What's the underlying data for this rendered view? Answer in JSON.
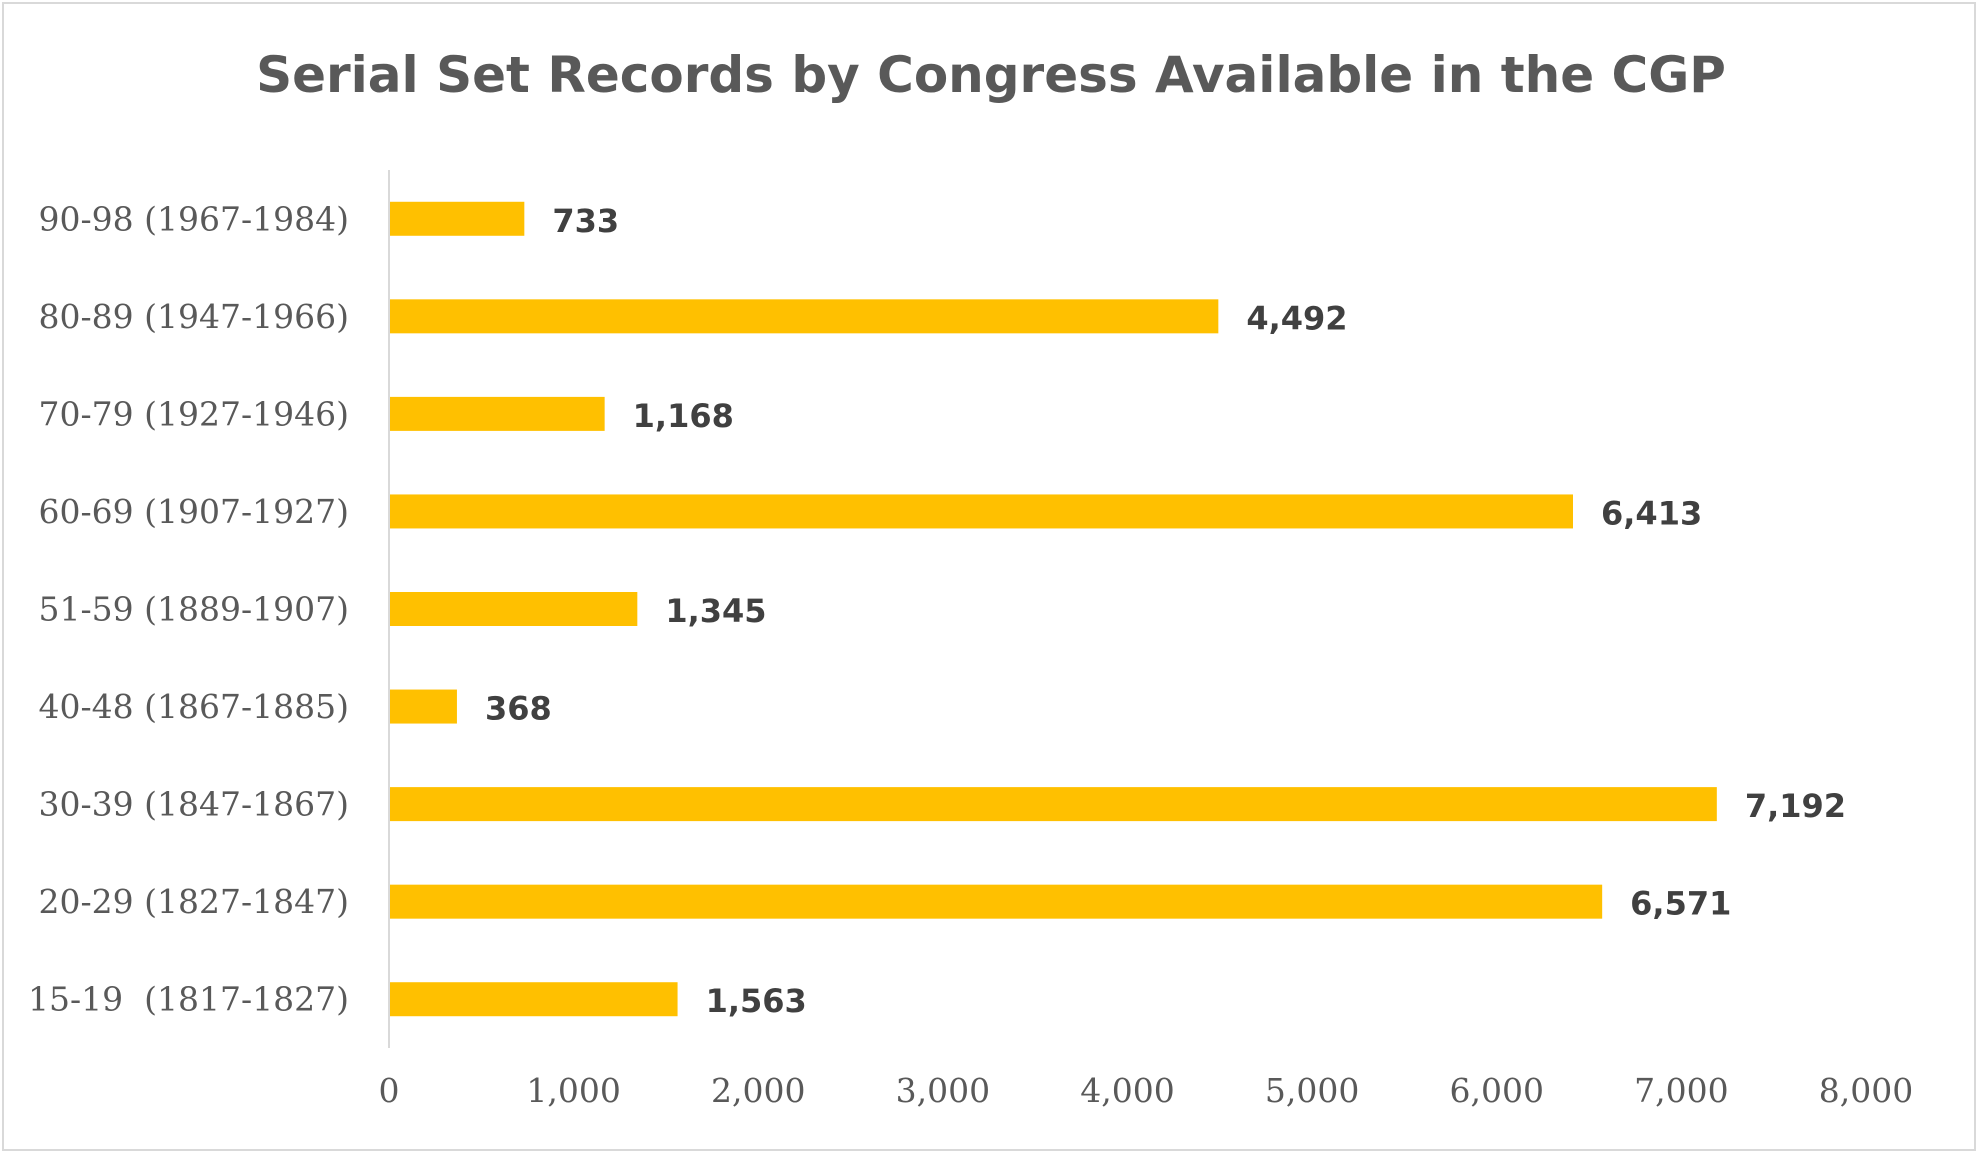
{
  "chart_data": {
    "type": "bar",
    "orientation": "horizontal",
    "title": "Serial Set Records by Congress Available in the CGP",
    "xlabel": "",
    "ylabel": "",
    "categories": [
      "15-19  (1817-1827)",
      "20-29 (1827-1847)",
      "30-39 (1847-1867)",
      "40-48 (1867-1885)",
      "51-59 (1889-1907)",
      "60-69 (1907-1927)",
      "70-79 (1927-1946)",
      "80-89 (1947-1966)",
      "90-98 (1967-1984)"
    ],
    "values": [
      1563,
      6571,
      7192,
      368,
      1345,
      6413,
      1168,
      4492,
      733
    ],
    "data_labels": [
      "1,563",
      "6,571",
      "7,192",
      "368",
      "1,345",
      "6,413",
      "1,168",
      "4,492",
      "733"
    ],
    "xlim": [
      0,
      8000
    ],
    "xticks": [
      0,
      1000,
      2000,
      3000,
      4000,
      5000,
      6000,
      7000,
      8000
    ],
    "xtick_labels": [
      "0",
      "1,000",
      "2,000",
      "3,000",
      "4,000",
      "5,000",
      "6,000",
      "7,000",
      "8,000"
    ],
    "grid": false,
    "legend": "none",
    "bar_color": "#FFC000",
    "axis_color": "#D9D9D9"
  }
}
